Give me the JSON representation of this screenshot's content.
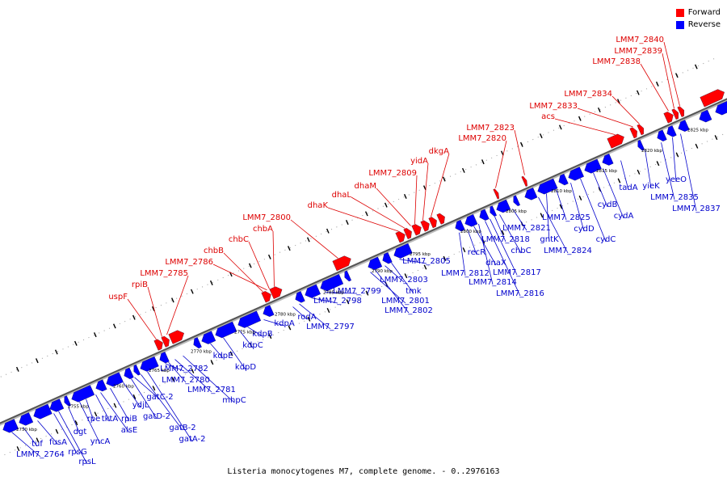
{
  "legend": {
    "forward_label": "Forward",
    "reverse_label": "Reverse",
    "forward_color": "#ff0000",
    "reverse_color": "#0000ff"
  },
  "caption": "Listeria monocytogenes M7, complete genome. - 0..2976163",
  "axis_ticks": [
    "2750 kbp",
    "2755 kbp",
    "2760 kbp",
    "2765 kbp",
    "2770 kbp",
    "2775 kbp",
    "2780 kbp",
    "2785 kbp",
    "2790 kbp",
    "2795 kbp",
    "2800 kbp",
    "2805 kbp",
    "2810 kbp",
    "2815 kbp",
    "2820 kbp",
    "2825 kbp"
  ],
  "forward_labels": [
    "uspF",
    "rpiB",
    "LMM7_2785",
    "LMM7_2786",
    "chbB",
    "chbC",
    "chbA",
    "LMM7_2800",
    "dhaK",
    "dhaL",
    "dhaM",
    "LMM7_2809",
    "yidA",
    "dkgA",
    "LMM7_2820",
    "LMM7_2823",
    "acs",
    "LMM7_2833",
    "LMM7_2834",
    "LMM7_2838",
    "LMM7_2839",
    "LMM7_2840"
  ],
  "reverse_labels": [
    "LMM7_2764",
    "tuf",
    "fusA",
    "rpsG",
    "rpsL",
    "dgt",
    "yncA",
    "rpe",
    "tktA",
    "alsE",
    "rpiB",
    "ydjL",
    "gatD-2",
    "gatC-2",
    "gatB-2",
    "gatA-2",
    "LMM7_2782",
    "LMM7_2780",
    "LMM7_2781",
    "mhpC",
    "kdpE",
    "kdpD",
    "kdpC",
    "kdpB",
    "kdpA",
    "rodA",
    "LMM7_2797",
    "LMM7_2798",
    "LMM7_2799",
    "LMM7_2801",
    "LMM7_2802",
    "LMM7_2803",
    "tmk",
    "LMM7_2805",
    "LMM7_2812",
    "recR",
    "dnaX",
    "LMM7_2814",
    "LMM7_2816",
    "LMM7_2817",
    "LMM7_2818",
    "chbC",
    "LMM7_2821",
    "LMM7_2824",
    "gntK",
    "LMM7_2825",
    "cydD",
    "cydC",
    "cydB",
    "cydA",
    "tadA",
    "yieK",
    "LMM7_2835",
    "yeeO",
    "LMM7_2837"
  ]
}
